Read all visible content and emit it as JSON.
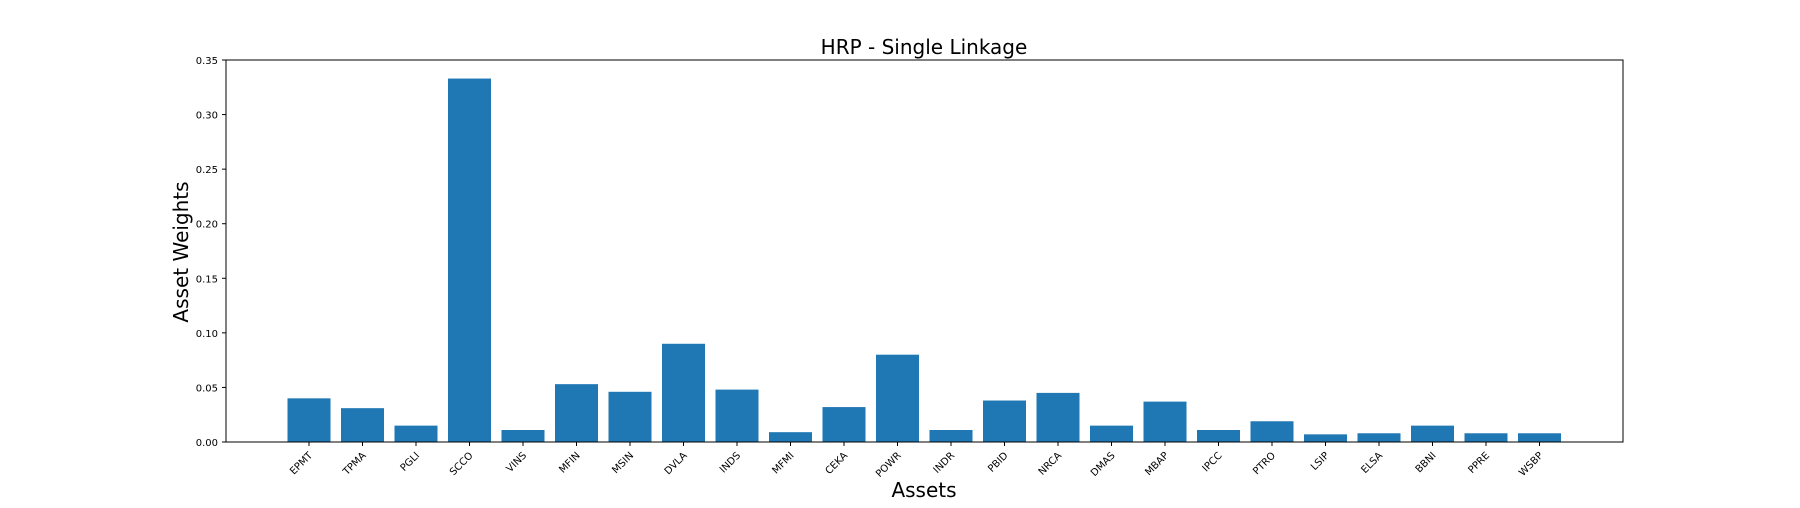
{
  "chart_data": {
    "type": "bar",
    "title": "HRP - Single Linkage",
    "xlabel": "Assets",
    "ylabel": "Asset Weights",
    "categories": [
      "EPMT",
      "TPMA",
      "PGLI",
      "SCCO",
      "VINS",
      "MFIN",
      "MSIN",
      "DVLA",
      "INDS",
      "MFMI",
      "CEKA",
      "POWR",
      "INDR",
      "PBID",
      "NRCA",
      "DMAS",
      "MBAP",
      "IPCC",
      "PTRO",
      "LSIP",
      "ELSA",
      "BBNI",
      "PPRE",
      "WSBP"
    ],
    "values": [
      0.04,
      0.031,
      0.015,
      0.333,
      0.011,
      0.053,
      0.046,
      0.09,
      0.048,
      0.009,
      0.032,
      0.08,
      0.011,
      0.038,
      0.045,
      0.015,
      0.037,
      0.011,
      0.019,
      0.007,
      0.008,
      0.015,
      0.008,
      0.008
    ],
    "ylim": [
      0,
      0.35
    ],
    "yticks": [
      "0.00",
      "0.05",
      "0.10",
      "0.15",
      "0.20",
      "0.25",
      "0.30",
      "0.35"
    ],
    "bar_color": "#1f77b4",
    "grid": false,
    "legend": "none"
  }
}
